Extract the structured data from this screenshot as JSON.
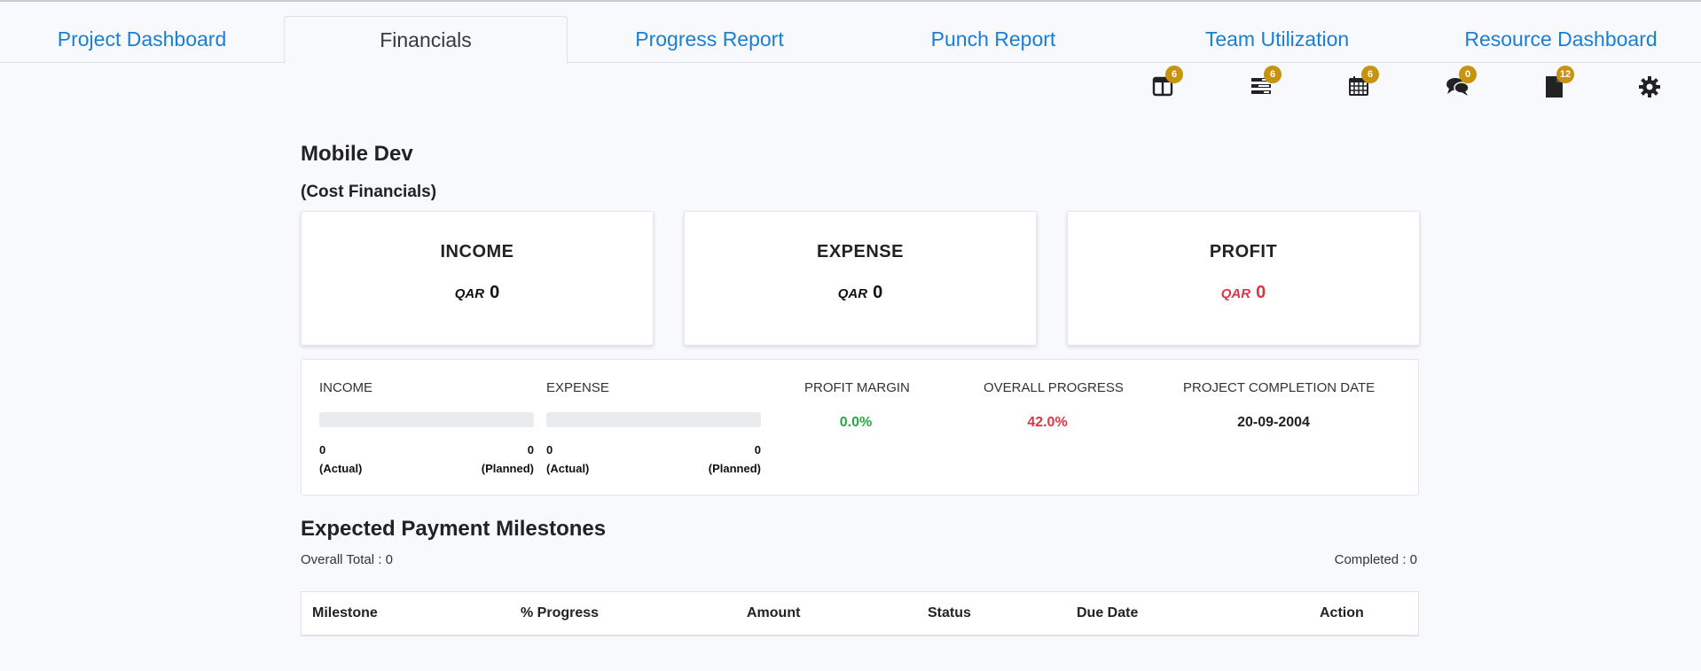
{
  "tabs": [
    {
      "label": "Project Dashboard"
    },
    {
      "label": "Financials"
    },
    {
      "label": "Progress Report"
    },
    {
      "label": "Punch Report"
    },
    {
      "label": "Team Utilization"
    },
    {
      "label": "Resource Dashboard"
    }
  ],
  "toolbar": {
    "items": [
      {
        "icon": "columns-icon",
        "count": "6"
      },
      {
        "icon": "tasks-list-icon",
        "count": "6"
      },
      {
        "icon": "calendar-icon",
        "count": "6"
      },
      {
        "icon": "comments-icon",
        "count": "0"
      },
      {
        "icon": "file-icon",
        "count": "12"
      },
      {
        "icon": "gear-icon"
      }
    ],
    "badge_color": "#c8930f"
  },
  "project": {
    "title": "Mobile Dev",
    "subtitle": "(Cost Financials)"
  },
  "cards": {
    "income": {
      "title": "INCOME",
      "currency": "QAR",
      "value": "0"
    },
    "expense": {
      "title": "EXPENSE",
      "currency": "QAR",
      "value": "0"
    },
    "profit": {
      "title": "PROFIT",
      "currency": "QAR",
      "value": "0"
    }
  },
  "summary": {
    "income": {
      "label": "INCOME",
      "actual": "0",
      "actual_label": "(Actual)",
      "planned": "0",
      "planned_label": "(Planned)",
      "fill": 0
    },
    "expense": {
      "label": "EXPENSE",
      "actual": "0",
      "actual_label": "(Actual)",
      "planned": "0",
      "planned_label": "(Planned)",
      "fill": 0
    },
    "profit_margin": {
      "label": "PROFIT MARGIN",
      "value": "0.0%"
    },
    "overall_progress": {
      "label": "OVERALL PROGRESS",
      "value": "42.0%"
    },
    "completion_date": {
      "label": "PROJECT COMPLETION DATE",
      "value": "20-09-2004"
    }
  },
  "milestones": {
    "title": "Expected Payment Milestones",
    "overall_total": "Overall Total : 0",
    "completed": "Completed : 0",
    "columns": [
      "Milestone",
      "% Progress",
      "Amount",
      "Status",
      "Due Date",
      "Action"
    ]
  },
  "colors": {
    "link": "#1a7fd4",
    "positive": "#28a745",
    "negative": "#dc3545"
  }
}
